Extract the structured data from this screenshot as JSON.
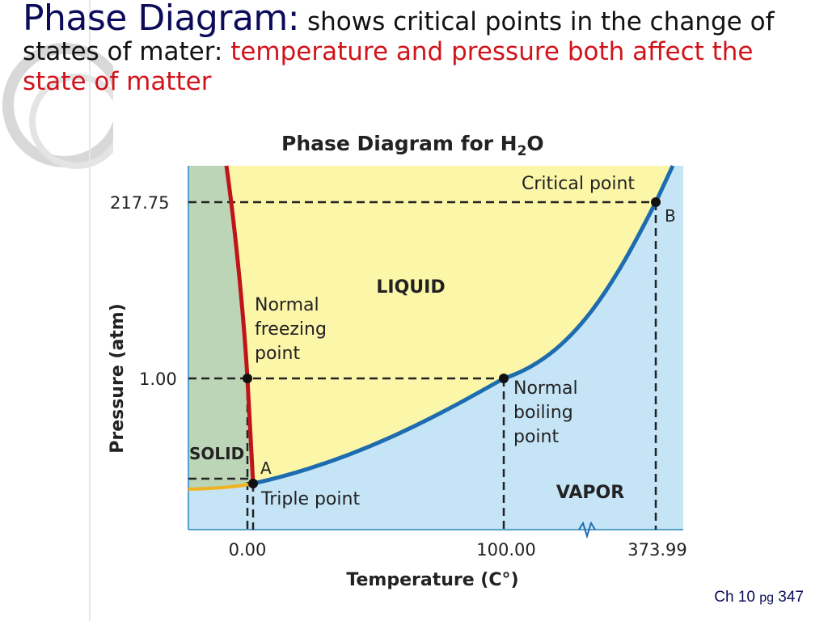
{
  "slide": {
    "heading_main": "Phase Diagram:",
    "heading_sub": " shows critical points in the change of states of mater: ",
    "heading_red": "temperature and pressure both affect the state of matter",
    "footer_ch": "Ch 10 ",
    "footer_pg": "pg",
    "footer_num": " 347"
  },
  "diagram": {
    "title": "Phase Diagram for H",
    "title_sub": "2",
    "title_end": "O",
    "xlabel": "Temperature (C°)",
    "ylabel": "Pressure (atm)",
    "x_ticks": [
      "0.00",
      "100.00",
      "373.99"
    ],
    "y_ticks": [
      "217.75",
      "1.00"
    ],
    "regions": {
      "solid": "SOLID",
      "liquid": "LIQUID",
      "vapor": "VAPOR"
    },
    "points": {
      "critical": "Critical point",
      "critical_letter": "B",
      "triple": "Triple point",
      "triple_letter": "A",
      "freezing_1": "Normal",
      "freezing_2": "freezing",
      "freezing_3": "point",
      "boiling_1": "Normal",
      "boiling_2": "boiling",
      "boiling_3": "point"
    },
    "colors": {
      "solid": "#bcd5b6",
      "liquid": "#fbf6a8",
      "vapor": "#c5e5f7",
      "fusion_curve": "#c0141b",
      "vapor_curve": "#1d6cb0",
      "sublimation_curve": "#f1b221"
    }
  }
}
